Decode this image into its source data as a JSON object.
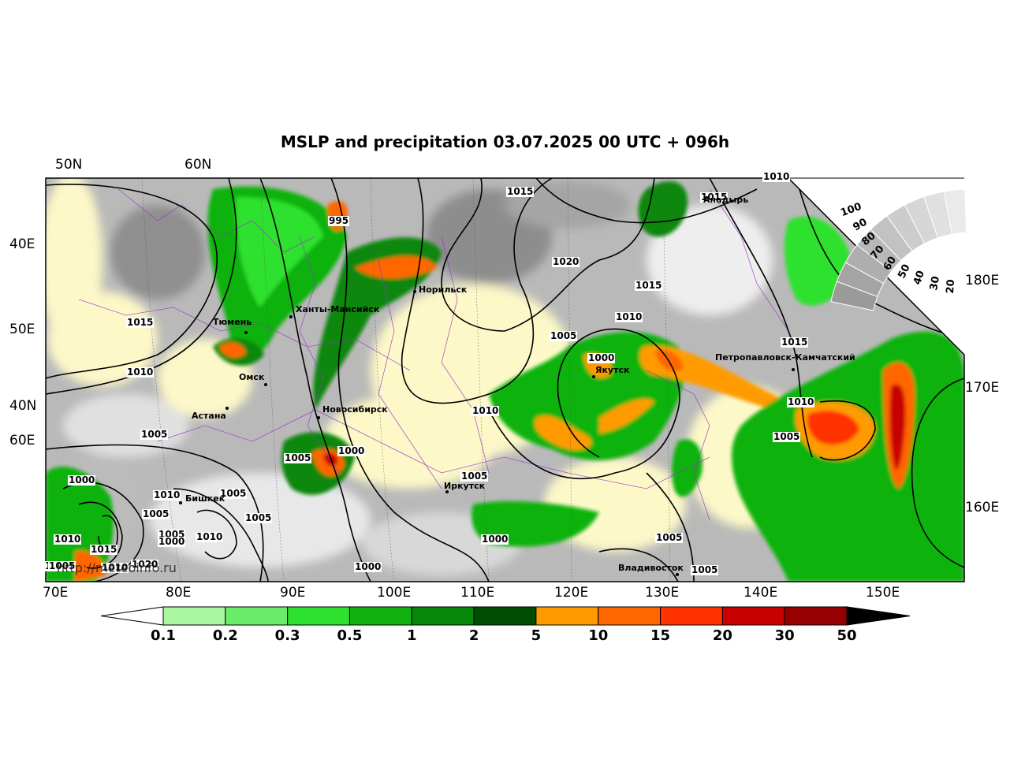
{
  "title": "MSLP and precipitation 03.07.2025 00 UTC + 096h",
  "axis_labels": {
    "top": [
      "50N",
      "60N"
    ],
    "left": [
      "40E",
      "50E",
      "40N",
      "60E"
    ],
    "right": [
      "180E",
      "170E",
      "160E"
    ],
    "bottom": [
      "70E",
      "80E",
      "90E",
      "100E",
      "110E",
      "120E",
      "130E",
      "140E",
      "150E"
    ]
  },
  "cities": [
    "Норильск",
    "Ханты-Мансийск",
    "Тюмень",
    "Омск",
    "Астана",
    "Новосибирск",
    "Бишкек",
    "Иркутск",
    "Якутск",
    "Анадырь",
    "Петропавловск-Камчатский",
    "Владивосток"
  ],
  "isobar_labels": [
    "995",
    "1015",
    "1015",
    "1020",
    "1015",
    "1010",
    "1005",
    "1000",
    "1010",
    "1015",
    "1010",
    "1005",
    "1010",
    "1005",
    "1005",
    "1000",
    "1000",
    "1005",
    "1010",
    "1005",
    "1005",
    "1010",
    "1005",
    "1005",
    "1000",
    "1015",
    "1010",
    "1010",
    "1015",
    "1010",
    "1020",
    "1010",
    "1000",
    "1005",
    "1000",
    "1005",
    "1005"
  ],
  "watermark": "http://meteoinfo.ru",
  "colorbar": {
    "ticks": [
      "0.1",
      "0.2",
      "0.3",
      "0.5",
      "1",
      "2",
      "5",
      "10",
      "15",
      "20",
      "30",
      "50"
    ],
    "colors": [
      "#ffffff",
      "#aaf5a0",
      "#6ced6a",
      "#2ee12e",
      "#0fb20f",
      "#078707",
      "#004c00",
      "#ff9b00",
      "#ff6600",
      "#ff3300",
      "#c80000",
      "#960000",
      "#000000"
    ]
  },
  "wheel_labels": [
    "100",
    "90",
    "80",
    "70",
    "60",
    "50",
    "40",
    "30",
    "20"
  ]
}
